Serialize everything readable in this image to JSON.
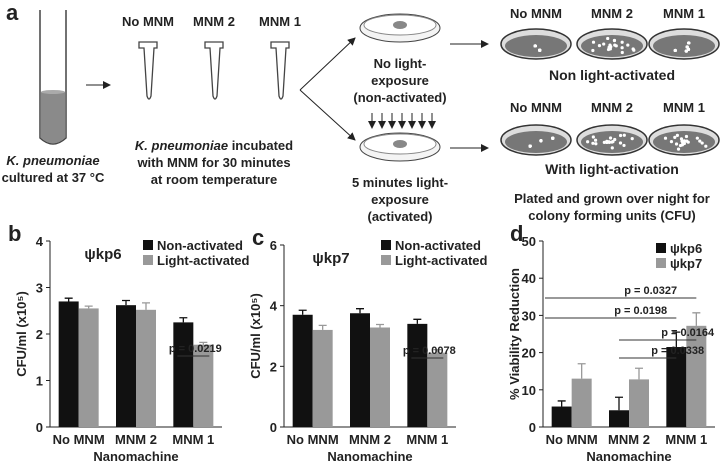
{
  "diagram": {
    "label": "a",
    "culture": {
      "organism": "K. pneumoniae",
      "condition": "cultured at 37 °C"
    },
    "tubes": [
      "No MNM",
      "MNM 2",
      "MNM 1"
    ],
    "incubation": {
      "organism": "K. pneumoniae",
      "line1": " incubated",
      "line2": "with MNM for 30 minutes",
      "line3": "at room temperature"
    },
    "dark": [
      "No light-",
      "exposure",
      "(non-activated)"
    ],
    "light": [
      "5 minutes light-",
      "exposure",
      "(activated)"
    ],
    "plates_top": {
      "labels": [
        "No MNM",
        "MNM 2",
        "MNM 1"
      ],
      "caption": "Non light-activated"
    },
    "plates_bottom": {
      "labels": [
        "No MNM",
        "MNM 2",
        "MNM 1"
      ],
      "caption": "With light-activation"
    },
    "result": [
      "Plated and grown over night for",
      "colony forming units (CFU)"
    ]
  },
  "chart_data": [
    {
      "type": "bar",
      "label": "b",
      "title": "ψkp6",
      "y_label": "CFU/ml (x10⁵)",
      "x_label": "Nanomachine",
      "categories": [
        "No MNM",
        "MNM 2",
        "MNM 1"
      ],
      "series": [
        {
          "name": "Non-activated",
          "color": "#111111",
          "values": [
            2.7,
            2.62,
            2.25
          ],
          "errors": [
            0.07,
            0.1,
            0.1
          ]
        },
        {
          "name": "Light-activated",
          "color": "#999999",
          "values": [
            2.55,
            2.52,
            1.77
          ],
          "errors": [
            0.05,
            0.15,
            0.05
          ]
        }
      ],
      "ylim": [
        0,
        4
      ],
      "yticks": [
        0,
        1,
        2,
        3,
        4
      ],
      "annotations": [
        "p = 0.0219"
      ]
    },
    {
      "type": "bar",
      "label": "c",
      "title": "ψkp7",
      "y_label": "CFU/ml (x10⁵)",
      "x_label": "Nanomachine",
      "categories": [
        "No MNM",
        "MNM 2",
        "MNM 1"
      ],
      "series": [
        {
          "name": "Non-activated",
          "color": "#111111",
          "values": [
            3.7,
            3.75,
            3.4
          ],
          "errors": [
            0.15,
            0.15,
            0.15
          ]
        },
        {
          "name": "Light-activated",
          "color": "#999999",
          "values": [
            3.2,
            3.28,
            2.45
          ],
          "errors": [
            0.15,
            0.1,
            0.1
          ]
        }
      ],
      "ylim": [
        0,
        6
      ],
      "yticks": [
        0,
        2,
        4,
        6
      ],
      "annotations": [
        "p = 0.0078"
      ]
    },
    {
      "type": "bar",
      "label": "d",
      "y_label": "% Viability Reduction",
      "x_label": "Nanomachine",
      "categories": [
        "No MNM",
        "MNM 2",
        "MNM 1"
      ],
      "series": [
        {
          "name": "ψkp6",
          "color": "#111111",
          "values": [
            5.5,
            4.5,
            21.5
          ],
          "errors": [
            1.5,
            3.5,
            4
          ]
        },
        {
          "name": "ψkp7",
          "color": "#999999",
          "values": [
            13,
            12.8,
            27.2
          ],
          "errors": [
            4,
            3,
            3.5
          ]
        }
      ],
      "ylim": [
        0,
        50
      ],
      "yticks": [
        0,
        10,
        20,
        30,
        40,
        50
      ],
      "annotations": [
        "p = 0.0327",
        "p = 0.0198",
        "p = 0.0164",
        "p = 0.0338"
      ]
    }
  ]
}
